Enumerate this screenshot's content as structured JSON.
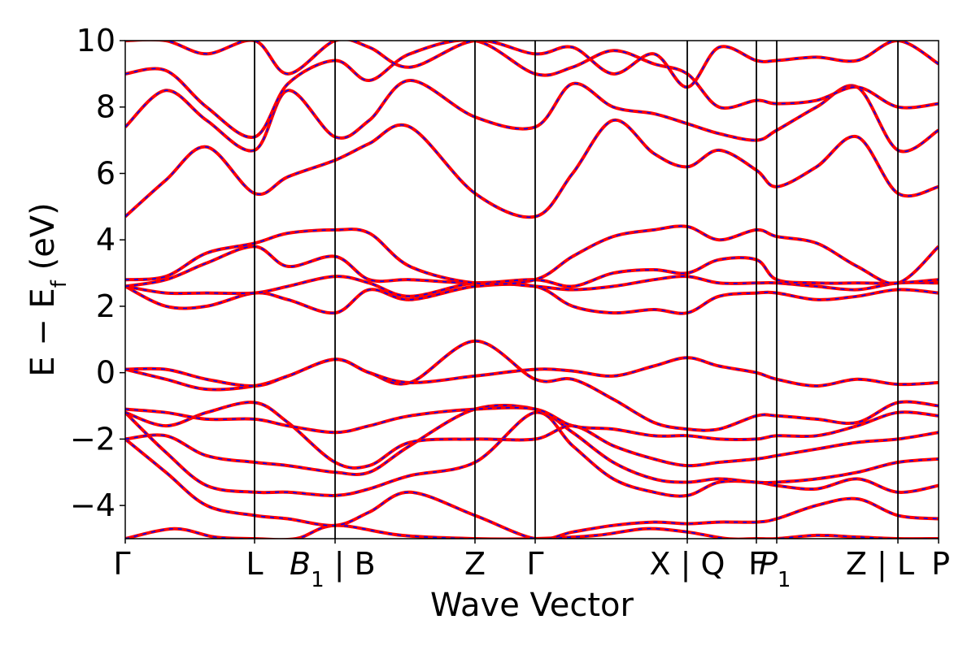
{
  "chart_data": {
    "type": "line",
    "title": "",
    "xlabel": "Wave Vector",
    "ylabel": "E − E",
    "ylabel_sub": "f",
    "ylabel_unit": " (eV)",
    "ylim": [
      -5,
      10
    ],
    "yticks": [
      -4,
      -2,
      0,
      2,
      4,
      6,
      8,
      10
    ],
    "ytick_labels": [
      "−4",
      "−2",
      "0",
      "2",
      "4",
      "6",
      "8",
      "10"
    ],
    "xlim": [
      0,
      1
    ],
    "grid": false,
    "legend": "none",
    "colors": {
      "primary": "#ff0000",
      "overlay": "#0000ff"
    },
    "kpoints": [
      {
        "x": 0.0,
        "label": "Γ",
        "sub": ""
      },
      {
        "x": 0.159,
        "label": "L",
        "sub": ""
      },
      {
        "x": 0.258,
        "label": "B",
        "sub": "1",
        "italic": true,
        "suffix": " | B"
      },
      {
        "x": 0.43,
        "label": "Z",
        "sub": ""
      },
      {
        "x": 0.504,
        "label": "Γ",
        "sub": ""
      },
      {
        "x": 0.691,
        "label": "X | Q",
        "sub": ""
      },
      {
        "x": 0.776,
        "label": "F",
        "sub": ""
      },
      {
        "x": 0.801,
        "label": "P",
        "sub": "1",
        "italic": true
      },
      {
        "x": 0.95,
        "label": "Z | L",
        "sub": ""
      },
      {
        "x": 1.0,
        "label": "P",
        "sub": ""
      }
    ],
    "series": [
      {
        "x": [
          0,
          0.06,
          0.11,
          0.159,
          0.21,
          0.258,
          0.34,
          0.43,
          0.504,
          0.58,
          0.64,
          0.691,
          0.74,
          0.776,
          0.801,
          0.85,
          0.9,
          0.95,
          1.0
        ],
        "y": [
          -5.0,
          -4.7,
          -4.95,
          -5.0,
          -5.0,
          -4.6,
          -4.9,
          -5.0,
          -5.0,
          -4.9,
          -4.7,
          -4.8,
          -5.0,
          -5.0,
          -5.0,
          -4.9,
          -4.95,
          -5.0,
          -5.0
        ]
      },
      {
        "x": [
          0,
          0.05,
          0.1,
          0.159,
          0.2,
          0.258,
          0.3,
          0.35,
          0.43,
          0.504,
          0.55,
          0.6,
          0.65,
          0.691,
          0.73,
          0.776,
          0.801,
          0.85,
          0.9,
          0.95,
          1.0
        ],
        "y": [
          -2.0,
          -3.0,
          -4.0,
          -4.3,
          -4.4,
          -4.6,
          -4.2,
          -3.6,
          -4.3,
          -5.0,
          -4.8,
          -4.6,
          -4.5,
          -4.55,
          -4.5,
          -4.5,
          -4.4,
          -4.0,
          -3.8,
          -4.3,
          -4.4
        ]
      },
      {
        "x": [
          0,
          0.05,
          0.1,
          0.159,
          0.2,
          0.258,
          0.3,
          0.35,
          0.43,
          0.504,
          0.55,
          0.6,
          0.65,
          0.691,
          0.73,
          0.776,
          0.801,
          0.85,
          0.9,
          0.95,
          1.0
        ],
        "y": [
          -1.2,
          -2.4,
          -3.4,
          -3.6,
          -3.6,
          -3.7,
          -3.5,
          -3.1,
          -2.7,
          -1.2,
          -2.2,
          -3.2,
          -3.6,
          -3.7,
          -3.3,
          -3.3,
          -3.4,
          -3.5,
          -3.2,
          -3.6,
          -3.4
        ]
      },
      {
        "x": [
          0,
          0.05,
          0.1,
          0.159,
          0.2,
          0.258,
          0.3,
          0.35,
          0.43,
          0.504,
          0.55,
          0.6,
          0.65,
          0.691,
          0.73,
          0.776,
          0.801,
          0.85,
          0.9,
          0.95,
          1.0
        ],
        "y": [
          -2.0,
          -1.9,
          -2.5,
          -2.7,
          -2.8,
          -3.0,
          -3.0,
          -2.2,
          -1.1,
          -1.1,
          -1.8,
          -2.7,
          -3.2,
          -3.3,
          -3.2,
          -3.3,
          -3.3,
          -3.2,
          -3.0,
          -2.7,
          -2.6
        ]
      },
      {
        "x": [
          0,
          0.05,
          0.1,
          0.159,
          0.2,
          0.258,
          0.3,
          0.35,
          0.43,
          0.504,
          0.55,
          0.6,
          0.65,
          0.691,
          0.73,
          0.776,
          0.801,
          0.85,
          0.9,
          0.95,
          1.0
        ],
        "y": [
          -1.2,
          -1.6,
          -1.2,
          -0.9,
          -1.5,
          -2.7,
          -2.8,
          -2.1,
          -2.0,
          -2.0,
          -1.6,
          -2.2,
          -2.6,
          -2.8,
          -2.7,
          -2.6,
          -2.5,
          -2.3,
          -2.1,
          -2.0,
          -1.8
        ]
      },
      {
        "x": [
          0,
          0.05,
          0.1,
          0.159,
          0.2,
          0.258,
          0.3,
          0.35,
          0.43,
          0.504,
          0.55,
          0.6,
          0.65,
          0.691,
          0.73,
          0.776,
          0.801,
          0.85,
          0.9,
          0.95,
          1.0
        ],
        "y": [
          -1.1,
          -1.2,
          -1.4,
          -1.4,
          -1.6,
          -1.8,
          -1.6,
          -1.3,
          -1.1,
          -1.1,
          -1.6,
          -1.7,
          -1.9,
          -1.9,
          -2.0,
          -2.0,
          -1.9,
          -1.9,
          -1.6,
          -1.2,
          -1.3
        ]
      },
      {
        "x": [
          0,
          0.05,
          0.1,
          0.159,
          0.2,
          0.258,
          0.3,
          0.35,
          0.43,
          0.504,
          0.55,
          0.6,
          0.65,
          0.691,
          0.73,
          0.776,
          0.801,
          0.85,
          0.9,
          0.95,
          1.0
        ],
        "y": [
          0.1,
          -0.2,
          -0.5,
          -0.4,
          -0.1,
          0.4,
          0.0,
          -0.3,
          0.95,
          -0.2,
          -0.2,
          -0.8,
          -1.5,
          -1.7,
          -1.7,
          -1.3,
          -1.3,
          -1.4,
          -1.5,
          -0.9,
          -1.0
        ]
      },
      {
        "x": [
          0,
          0.05,
          0.1,
          0.159,
          0.2,
          0.258,
          0.3,
          0.35,
          0.43,
          0.504,
          0.55,
          0.6,
          0.65,
          0.691,
          0.73,
          0.776,
          0.801,
          0.85,
          0.9,
          0.95,
          1.0
        ],
        "y": [
          0.1,
          0.1,
          -0.2,
          -0.4,
          -0.1,
          0.4,
          0.0,
          -0.3,
          -0.1,
          0.1,
          0.05,
          -0.1,
          0.2,
          0.45,
          0.2,
          0.0,
          -0.2,
          -0.4,
          -0.2,
          -0.35,
          -0.3
        ]
      },
      {
        "x": [
          0,
          0.05,
          0.1,
          0.159,
          0.2,
          0.258,
          0.3,
          0.35,
          0.43,
          0.504,
          0.55,
          0.6,
          0.65,
          0.691,
          0.73,
          0.776,
          0.801,
          0.85,
          0.9,
          0.95,
          1.0
        ],
        "y": [
          2.6,
          2.0,
          2.0,
          2.4,
          2.2,
          1.8,
          2.5,
          2.2,
          2.6,
          2.6,
          2.0,
          1.8,
          1.9,
          1.8,
          2.3,
          2.4,
          2.4,
          2.2,
          2.3,
          2.5,
          2.4
        ]
      },
      {
        "x": [
          0,
          0.05,
          0.1,
          0.159,
          0.2,
          0.258,
          0.3,
          0.35,
          0.43,
          0.504,
          0.55,
          0.6,
          0.65,
          0.691,
          0.73,
          0.776,
          0.801,
          0.85,
          0.9,
          0.95,
          1.0
        ],
        "y": [
          2.6,
          2.4,
          2.4,
          2.4,
          2.6,
          2.9,
          2.7,
          2.3,
          2.7,
          2.6,
          2.5,
          2.6,
          2.8,
          2.9,
          2.7,
          2.7,
          2.7,
          2.6,
          2.5,
          2.7,
          2.7
        ]
      },
      {
        "x": [
          0,
          0.05,
          0.1,
          0.159,
          0.2,
          0.258,
          0.3,
          0.35,
          0.43,
          0.504,
          0.55,
          0.6,
          0.65,
          0.691,
          0.73,
          0.776,
          0.801,
          0.85,
          0.9,
          0.95,
          1.0
        ],
        "y": [
          2.6,
          2.8,
          3.3,
          3.8,
          3.2,
          3.5,
          2.8,
          2.8,
          2.7,
          2.8,
          2.6,
          3.0,
          3.1,
          3.0,
          3.4,
          3.4,
          2.8,
          2.7,
          2.7,
          2.7,
          2.8
        ]
      },
      {
        "x": [
          0,
          0.05,
          0.1,
          0.159,
          0.2,
          0.258,
          0.3,
          0.35,
          0.43,
          0.504,
          0.55,
          0.6,
          0.65,
          0.691,
          0.73,
          0.776,
          0.801,
          0.85,
          0.9,
          0.95,
          1.0
        ],
        "y": [
          2.8,
          2.9,
          3.6,
          3.9,
          4.2,
          4.3,
          4.2,
          3.2,
          2.7,
          2.8,
          3.5,
          4.1,
          4.3,
          4.4,
          4.0,
          4.3,
          4.1,
          3.9,
          3.2,
          2.7,
          3.8
        ]
      },
      {
        "x": [
          0,
          0.05,
          0.1,
          0.159,
          0.2,
          0.258,
          0.3,
          0.35,
          0.43,
          0.504,
          0.55,
          0.6,
          0.65,
          0.691,
          0.73,
          0.776,
          0.801,
          0.85,
          0.9,
          0.95,
          1.0
        ],
        "y": [
          4.7,
          5.8,
          6.8,
          5.4,
          5.9,
          6.4,
          6.9,
          7.4,
          5.4,
          4.7,
          6.0,
          7.6,
          6.6,
          6.2,
          6.7,
          6.1,
          5.6,
          6.2,
          7.1,
          5.4,
          5.6
        ]
      },
      {
        "x": [
          0,
          0.05,
          0.1,
          0.159,
          0.2,
          0.258,
          0.3,
          0.35,
          0.43,
          0.504,
          0.55,
          0.6,
          0.65,
          0.691,
          0.73,
          0.776,
          0.801,
          0.85,
          0.9,
          0.95,
          1.0
        ],
        "y": [
          7.4,
          8.5,
          7.6,
          6.7,
          8.5,
          7.1,
          7.6,
          8.8,
          7.7,
          7.4,
          8.7,
          8.0,
          7.8,
          7.5,
          7.2,
          7.0,
          7.3,
          8.0,
          8.6,
          6.7,
          7.3
        ]
      },
      {
        "x": [
          0,
          0.05,
          0.1,
          0.159,
          0.2,
          0.258,
          0.3,
          0.35,
          0.43,
          0.504,
          0.55,
          0.6,
          0.65,
          0.691,
          0.73,
          0.776,
          0.801,
          0.85,
          0.9,
          0.95,
          1.0
        ],
        "y": [
          9.0,
          9.1,
          8.0,
          7.1,
          8.7,
          9.4,
          8.8,
          9.6,
          10.0,
          9.0,
          9.2,
          9.7,
          9.3,
          9.0,
          8.0,
          8.2,
          8.1,
          8.2,
          8.6,
          8.0,
          8.1
        ]
      },
      {
        "x": [
          0,
          0.05,
          0.1,
          0.159,
          0.2,
          0.258,
          0.3,
          0.35,
          0.43,
          0.504,
          0.55,
          0.6,
          0.65,
          0.691,
          0.73,
          0.776,
          0.801,
          0.85,
          0.9,
          0.95,
          1.0
        ],
        "y": [
          10.0,
          10.0,
          9.6,
          10.0,
          9.0,
          10.0,
          9.8,
          9.2,
          10.0,
          9.6,
          9.8,
          9.0,
          9.6,
          8.6,
          9.8,
          9.4,
          9.4,
          9.5,
          9.4,
          10.0,
          9.3
        ]
      }
    ]
  }
}
